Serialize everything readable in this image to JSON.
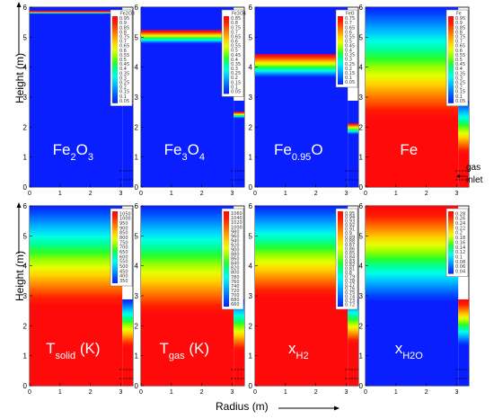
{
  "figure": {
    "ylabel": "Height (m)",
    "xlabel": "Radius (m)",
    "annotation_gas": "gas",
    "annotation_inlet": "inlet"
  },
  "chart_data": [
    {
      "type": "heatmap",
      "row": 0,
      "col": 0,
      "label_main": "Fe",
      "label_sub": "2",
      "label_mid": "O",
      "label_sub2": "3",
      "legend_title": "Fe2O3",
      "legend_ticks": [
        "0.95",
        "0.9",
        "0.85",
        "0.8",
        "0.75",
        "0.7",
        "0.65",
        "0.6",
        "0.55",
        "0.5",
        "0.45",
        "0.4",
        "0.35",
        "0.3",
        "0.25",
        "0.2",
        "0.15",
        "0.1",
        "0.05"
      ],
      "front": 5.85,
      "front_dip": 0.0,
      "band": 0.15,
      "x_ticks": [
        "0",
        "1",
        "2",
        "3"
      ],
      "y_ticks": [
        "0",
        "1",
        "2",
        "3",
        "4",
        "5",
        "6"
      ],
      "xlim": [
        0,
        3.4
      ],
      "ylim": [
        0,
        6
      ]
    },
    {
      "type": "heatmap",
      "row": 0,
      "col": 1,
      "label_main": "Fe",
      "label_sub": "3",
      "label_mid": "O",
      "label_sub2": "4",
      "legend_title": "Fe3O4",
      "legend_ticks": [
        "0.85",
        "0.8",
        "0.75",
        "0.7",
        "0.65",
        "0.6",
        "0.55",
        "0.5",
        "0.45",
        "0.4",
        "0.35",
        "0.3",
        "0.25",
        "0.2",
        "0.15",
        "0.1",
        "0.05"
      ],
      "front": 5.2,
      "front_dip": 0.45,
      "band": 0.9,
      "x_ticks": [
        "0",
        "1",
        "2",
        "3"
      ],
      "y_ticks": [
        "0",
        "1",
        "2",
        "3",
        "4",
        "5",
        "6"
      ],
      "xlim": [
        0,
        3.4
      ],
      "ylim": [
        0,
        6
      ]
    },
    {
      "type": "heatmap",
      "row": 0,
      "col": 2,
      "label_main": "Fe",
      "label_sub": "0.95",
      "label_mid": "O",
      "label_sub2": "",
      "legend_title": "FeO",
      "legend_ticks": [
        "0.75",
        "0.7",
        "0.65",
        "0.6",
        "0.55",
        "0.5",
        "0.45",
        "0.4",
        "0.35",
        "0.3",
        "0.25",
        "0.2",
        "0.15",
        "0.1",
        "0.05"
      ],
      "front": 4.4,
      "front_dip": 0.9,
      "band": 1.6,
      "x_ticks": [
        "0",
        "1",
        "2",
        "3"
      ],
      "y_ticks": [
        "0",
        "1",
        "2",
        "3",
        "4",
        "5",
        "6"
      ],
      "xlim": [
        0,
        3.4
      ],
      "ylim": [
        0,
        6
      ]
    },
    {
      "type": "heatmap",
      "row": 0,
      "col": 3,
      "label_main": "Fe",
      "label_sub": "",
      "label_mid": "",
      "label_sub2": "",
      "legend_title": "Fe",
      "legend_ticks": [
        "0.95",
        "0.9",
        "0.85",
        "0.8",
        "0.75",
        "0.7",
        "0.65",
        "0.6",
        "0.55",
        "0.5",
        "0.45",
        "0.4",
        "0.35",
        "0.3",
        "0.25",
        "0.2",
        "0.15",
        "0.1",
        "0.05"
      ],
      "front": 4.3,
      "front_dip": 1.0,
      "band": 2.3,
      "x_ticks": [
        "0",
        "1",
        "2",
        "3"
      ],
      "y_ticks": [
        "0",
        "1",
        "2",
        "3",
        "4",
        "5",
        "6"
      ],
      "xlim": [
        0,
        3.4
      ],
      "ylim": [
        0,
        6
      ]
    },
    {
      "type": "heatmap",
      "row": 1,
      "col": 0,
      "label_main": "T",
      "label_sub": "solid",
      "label_mid": " (K)",
      "label_sub2": "",
      "legend_title": "",
      "legend_ticks": [
        "1050",
        "1000",
        "950",
        "900",
        "850",
        "800",
        "750",
        "700",
        "650",
        "600",
        "550",
        "500",
        "450",
        "400",
        "350"
      ],
      "front": 4.6,
      "front_dip": 1.1,
      "band": 2.2,
      "x_ticks": [
        "0",
        "1",
        "2",
        "3"
      ],
      "y_ticks": [
        "0",
        "1",
        "2",
        "3",
        "4",
        "5",
        "6"
      ],
      "xlim": [
        0,
        3.4
      ],
      "ylim": [
        0,
        6
      ]
    },
    {
      "type": "heatmap",
      "row": 1,
      "col": 1,
      "label_main": "T",
      "label_sub": "gas",
      "label_mid": " (K)",
      "label_sub2": "",
      "legend_title": "",
      "legend_ticks": [
        "1060",
        "1040",
        "1020",
        "1000",
        "980",
        "960",
        "940",
        "920",
        "900",
        "880",
        "860",
        "840",
        "820",
        "800",
        "780",
        "760",
        "740",
        "720",
        "700",
        "680",
        "660"
      ],
      "front": 4.5,
      "front_dip": 1.1,
      "band": 2.4,
      "x_ticks": [
        "0",
        "1",
        "2",
        "3"
      ],
      "y_ticks": [
        "0",
        "1",
        "2",
        "3",
        "4",
        "5",
        "6"
      ],
      "xlim": [
        0,
        3.4
      ],
      "ylim": [
        0,
        6
      ]
    },
    {
      "type": "heatmap",
      "row": 1,
      "col": 2,
      "label_main": "x",
      "label_sub": "H2",
      "label_mid": "",
      "label_sub2": "",
      "legend_title": "",
      "legend_ticks": [
        "0.95",
        "0.94",
        "0.93",
        "0.92",
        "0.91",
        "0.9",
        "0.89",
        "0.88",
        "0.87",
        "0.86",
        "0.85",
        "0.84",
        "0.83",
        "0.82",
        "0.81",
        "0.8",
        "0.79",
        "0.78",
        "0.77",
        "0.76",
        "0.75",
        "0.74",
        "0.73",
        "0.72"
      ],
      "front": 4.7,
      "front_dip": 1.1,
      "band": 2.0,
      "x_ticks": [
        "0",
        "1",
        "2",
        "3"
      ],
      "y_ticks": [
        "0",
        "1",
        "2",
        "3",
        "4",
        "5",
        "6"
      ],
      "xlim": [
        0,
        3.4
      ],
      "ylim": [
        0,
        6
      ]
    },
    {
      "type": "heatmap",
      "row": 1,
      "col": 3,
      "label_main": "x",
      "label_sub": "H2O",
      "label_mid": "",
      "label_sub2": "",
      "legend_title": "",
      "legend_ticks": [
        "0.28",
        "0.26",
        "0.24",
        "0.22",
        "0.2",
        "0.18",
        "0.16",
        "0.14",
        "0.12",
        "0.1",
        "0.08",
        "0.06",
        "0.04"
      ],
      "front": 4.7,
      "front_dip": 1.1,
      "band": 2.0,
      "inverted": true,
      "x_ticks": [
        "0",
        "1",
        "2",
        "3"
      ],
      "y_ticks": [
        "0",
        "1",
        "2",
        "3",
        "4",
        "5",
        "6"
      ],
      "xlim": [
        0,
        3.4
      ],
      "ylim": [
        0,
        6
      ]
    }
  ],
  "colors": {
    "jet": [
      "#0a1fff",
      "#0050ff",
      "#008cff",
      "#00c8ff",
      "#00ffe6",
      "#00ff96",
      "#28ff28",
      "#96ff00",
      "#e6ff00",
      "#ffd200",
      "#ff9600",
      "#ff5a00",
      "#ff1e00",
      "#ff0a0a"
    ]
  }
}
